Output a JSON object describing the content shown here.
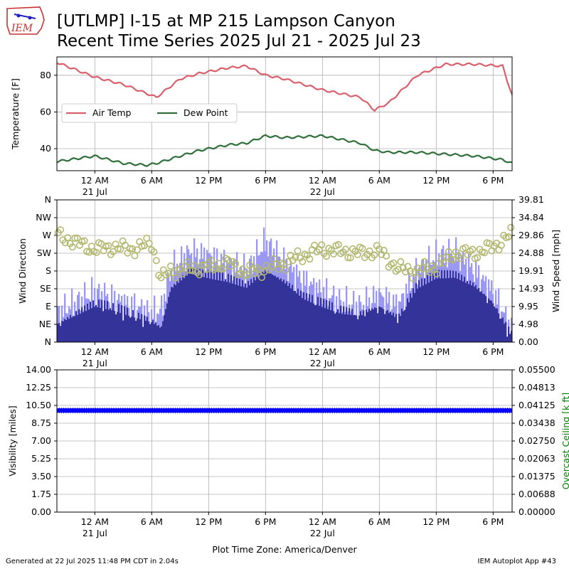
{
  "header": {
    "title_line1": "[UTLMP] I-15 at MP 215 Lampson Canyon",
    "title_line2": "Recent Time Series 2025 Jul 21 - 2025 Jul 23",
    "logo_text": "IEM"
  },
  "footer": {
    "generated": "Generated at 22 Jul 2025 11:48 PM CDT in 2.04s",
    "app": "IEM Autoplot App #43"
  },
  "colors": {
    "air_temp": "#d9606a",
    "dew_point": "#2f6f3a",
    "wind_gust": "#9b98f2",
    "wind_speed": "#33339a",
    "wind_dir": "#b2b86e",
    "visibility": "#0000ff",
    "ceiling_label": "#008000"
  },
  "chart_data": [
    {
      "type": "line",
      "ylabel": "Temperature [F]",
      "ylim": [
        28,
        90
      ],
      "yticks": [
        "40",
        "60",
        "80"
      ],
      "xticks": [
        {
          "label": "12 AM",
          "sub": "21 Jul"
        },
        {
          "label": "6 AM",
          "sub": ""
        },
        {
          "label": "12 PM",
          "sub": ""
        },
        {
          "label": "6 PM",
          "sub": ""
        },
        {
          "label": "12 AM",
          "sub": "22 Jul"
        },
        {
          "label": "6 AM",
          "sub": ""
        },
        {
          "label": "12 PM",
          "sub": ""
        },
        {
          "label": "6 PM",
          "sub": ""
        }
      ],
      "x_hours_from_start": [
        -4,
        0,
        3,
        5.5,
        6.5,
        9,
        11,
        14,
        16,
        18,
        20,
        24,
        28,
        29.5,
        31,
        34,
        37,
        40,
        43,
        44
      ],
      "legend": "upper-left",
      "grid": true,
      "series": [
        {
          "name": "Air Temp",
          "values": [
            87,
            79,
            75,
            70,
            68,
            78,
            81,
            84,
            85,
            80,
            78,
            72,
            68,
            61,
            65,
            80,
            86,
            86,
            85,
            69
          ]
        },
        {
          "name": "Dew Point",
          "values": [
            33,
            36,
            32,
            31,
            32,
            36,
            39,
            42,
            43,
            47,
            46,
            47,
            43,
            39,
            38,
            38,
            37,
            36,
            34,
            32
          ]
        }
      ]
    },
    {
      "type": "bar",
      "ylabel": "Wind Direction",
      "ylabel_right": "Wind Speed [mph]",
      "dir_ticks": [
        "N",
        "NE",
        "E",
        "SE",
        "S",
        "SW",
        "W",
        "NW",
        "N"
      ],
      "speed_ticks": [
        "0.00",
        "4.98",
        "9.95",
        "14.93",
        "19.91",
        "24.88",
        "29.86",
        "34.84",
        "39.81"
      ],
      "ylim_right": [
        0,
        39.81
      ],
      "xticks": [
        {
          "label": "12 AM",
          "sub": "21 Jul"
        },
        {
          "label": "6 AM",
          "sub": ""
        },
        {
          "label": "12 PM",
          "sub": ""
        },
        {
          "label": "6 PM",
          "sub": ""
        },
        {
          "label": "12 AM",
          "sub": "22 Jul"
        },
        {
          "label": "6 AM",
          "sub": ""
        },
        {
          "label": "12 PM",
          "sub": ""
        },
        {
          "label": "6 PM",
          "sub": ""
        }
      ],
      "x_hours_from_start": [
        -4,
        0,
        2,
        4,
        6,
        7,
        8,
        10,
        12,
        14,
        16,
        18,
        20,
        22,
        24,
        26,
        28,
        30,
        32,
        34,
        36,
        38,
        40,
        42,
        44
      ],
      "grid": true,
      "series": [
        {
          "name": "Wind Gust",
          "values": [
            8,
            14,
            12,
            10,
            8,
            9,
            20,
            25,
            24,
            22,
            20,
            28,
            22,
            17,
            14,
            11,
            10,
            13,
            10,
            20,
            24,
            25,
            20,
            14,
            3
          ]
        },
        {
          "name": "Wind Speed",
          "values": [
            5,
            11,
            10,
            8,
            6,
            4,
            15,
            20,
            19,
            18,
            16,
            20,
            17,
            13,
            11,
            9,
            8,
            10,
            7,
            16,
            19,
            19,
            16,
            11,
            2
          ]
        },
        {
          "name": "Wind Direction",
          "values": [
            270,
            235,
            240,
            235,
            250,
            160,
            180,
            185,
            190,
            200,
            175,
            185,
            200,
            220,
            235,
            230,
            225,
            230,
            185,
            180,
            190,
            225,
            225,
            240,
            275
          ]
        }
      ]
    },
    {
      "type": "line",
      "ylabel": "Visibility [miles]",
      "ylabel_right": "Overcast Ceiling [k ft]",
      "ylim": [
        0,
        14
      ],
      "yticks": [
        "0.00",
        "1.75",
        "3.50",
        "5.25",
        "7.00",
        "8.75",
        "10.50",
        "12.25",
        "14.00"
      ],
      "yticks_right": [
        "0.00000",
        "0.00688",
        "0.01375",
        "0.02063",
        "0.02750",
        "0.03438",
        "0.04125",
        "0.04813",
        "0.05500"
      ],
      "xticks": [
        {
          "label": "12 AM",
          "sub": "21 Jul"
        },
        {
          "label": "6 AM",
          "sub": ""
        },
        {
          "label": "12 PM",
          "sub": ""
        },
        {
          "label": "6 PM",
          "sub": ""
        },
        {
          "label": "12 AM",
          "sub": "22 Jul"
        },
        {
          "label": "6 AM",
          "sub": ""
        },
        {
          "label": "12 PM",
          "sub": ""
        },
        {
          "label": "6 PM",
          "sub": ""
        }
      ],
      "xlabel": "Plot Time Zone: America/Denver",
      "grid": true,
      "series": [
        {
          "name": "Visibility",
          "values": [
            10,
            10
          ]
        }
      ]
    }
  ]
}
